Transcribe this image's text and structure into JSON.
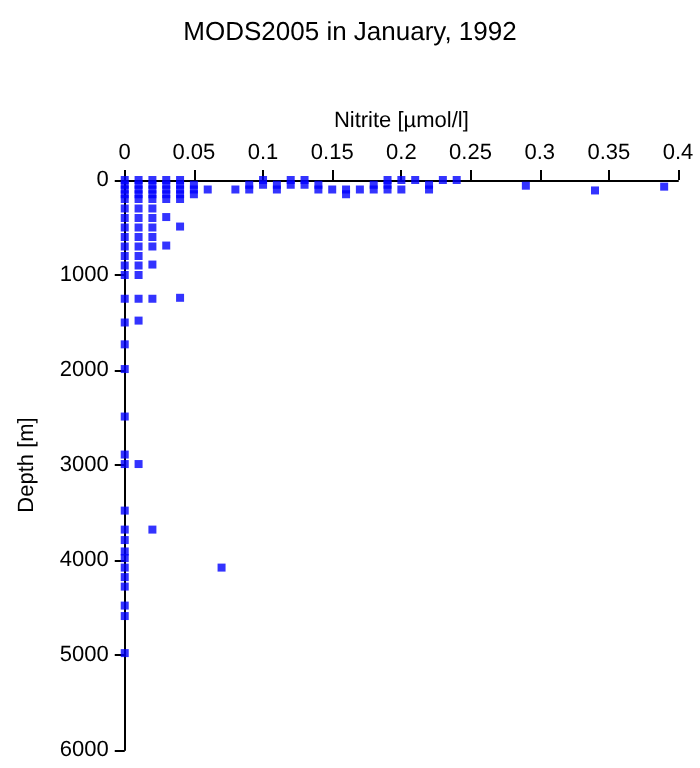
{
  "chart_data": {
    "type": "scatter",
    "title": "MODS2005 in January, 1992",
    "xlabel": "Nitrite [µmol/l]",
    "ylabel": "Depth [m]",
    "color": "#0000ff",
    "marker": "square",
    "x": [
      0,
      0,
      0,
      0,
      0,
      0,
      0,
      0,
      0,
      0,
      0,
      0,
      0,
      0,
      0,
      0,
      0,
      0,
      0,
      0,
      0,
      0,
      0,
      0,
      0,
      0,
      0,
      0,
      0,
      0,
      0,
      0.01,
      0.01,
      0.01,
      0.01,
      0.01,
      0.01,
      0.01,
      0.01,
      0.01,
      0.01,
      0.01,
      0.01,
      0.01,
      0.01,
      0.01,
      0.01,
      0.02,
      0.02,
      0.02,
      0.02,
      0.02,
      0.02,
      0.02,
      0.02,
      0.02,
      0.02,
      0.02,
      0.02,
      0.02,
      0.03,
      0.03,
      0.03,
      0.03,
      0.03,
      0.03,
      0.03,
      0.04,
      0.04,
      0.04,
      0.04,
      0.04,
      0.04,
      0.04,
      0.05,
      0.05,
      0.05,
      0.06,
      0.07,
      0.08,
      0.09,
      0.09,
      0.1,
      0.1,
      0.11,
      0.11,
      0.12,
      0.12,
      0.13,
      0.13,
      0.14,
      0.14,
      0.15,
      0.16,
      0.16,
      0.17,
      0.18,
      0.18,
      0.19,
      0.19,
      0.19,
      0.2,
      0.2,
      0.21,
      0.22,
      0.22,
      0.23,
      0.24,
      0.29,
      0.34,
      0.39
    ],
    "values": [
      0,
      50,
      100,
      150,
      200,
      300,
      400,
      500,
      600,
      700,
      800,
      900,
      1000,
      1250,
      1500,
      1730,
      1990,
      2490,
      2890,
      2990,
      3480,
      3680,
      3790,
      3910,
      3980,
      4080,
      4180,
      4280,
      4480,
      4590,
      4980,
      0,
      50,
      100,
      150,
      200,
      300,
      400,
      500,
      600,
      700,
      800,
      900,
      1000,
      1250,
      1480,
      2990,
      0,
      50,
      100,
      150,
      200,
      300,
      400,
      500,
      600,
      700,
      890,
      1250,
      3680,
      0,
      50,
      100,
      150,
      200,
      390,
      690,
      0,
      50,
      100,
      150,
      200,
      490,
      1240,
      50,
      100,
      150,
      100,
      4080,
      100,
      50,
      100,
      0,
      50,
      50,
      100,
      0,
      50,
      0,
      50,
      50,
      100,
      100,
      100,
      150,
      100,
      50,
      100,
      0,
      50,
      100,
      0,
      100,
      0,
      50,
      100,
      0,
      0,
      60,
      110,
      70
    ],
    "xlim": [
      0,
      0.4
    ],
    "xticks": [
      0,
      0.05,
      0.1,
      0.15,
      0.2,
      0.25,
      0.3,
      0.35,
      0.4
    ],
    "ylim": [
      6000,
      0
    ],
    "yticks": [
      0,
      1000,
      2000,
      3000,
      4000,
      5000,
      6000
    ]
  }
}
